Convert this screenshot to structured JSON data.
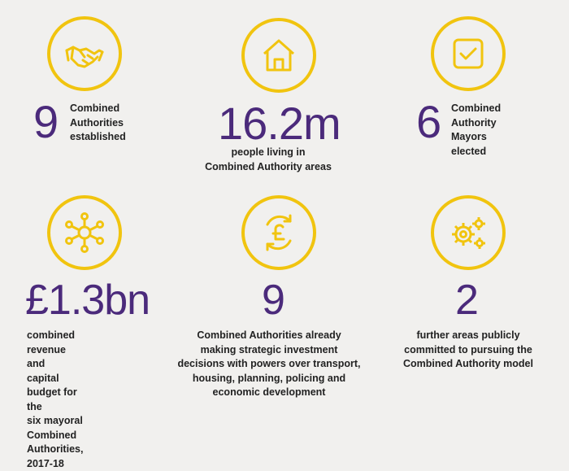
{
  "colors": {
    "icon_ring": "#f1c40f",
    "figure": "#4b2a7b",
    "text": "#222222",
    "background": "#f1f0ee"
  },
  "stats": [
    {
      "icon": "handshake-icon",
      "figure": "9",
      "label_lines": [
        "Combined",
        "Authorities",
        "established"
      ]
    },
    {
      "icon": "house-icon",
      "figure": "16.2m",
      "label_lines": [
        "people living in",
        "Combined Authority areas"
      ]
    },
    {
      "icon": "checkbox-icon",
      "figure": "6",
      "label_lines": [
        "Combined",
        "Authority",
        "Mayors elected"
      ]
    },
    {
      "icon": "network-icon",
      "figure": "£1.3bn",
      "label_lines": [
        "combined revenue and",
        "capital budget for the",
        "six mayoral Combined",
        "Authorities, 2017-18"
      ]
    },
    {
      "icon": "pound-cycle-icon",
      "figure": "9",
      "label_lines": [
        "Combined Authorities already",
        "making strategic investment",
        "decisions with powers over transport,",
        "housing, planning, policing and",
        "economic development"
      ]
    },
    {
      "icon": "gears-icon",
      "figure": "2",
      "label_lines": [
        "further areas publicly",
        "committed to pursuing the",
        "Combined Authority model"
      ]
    }
  ]
}
